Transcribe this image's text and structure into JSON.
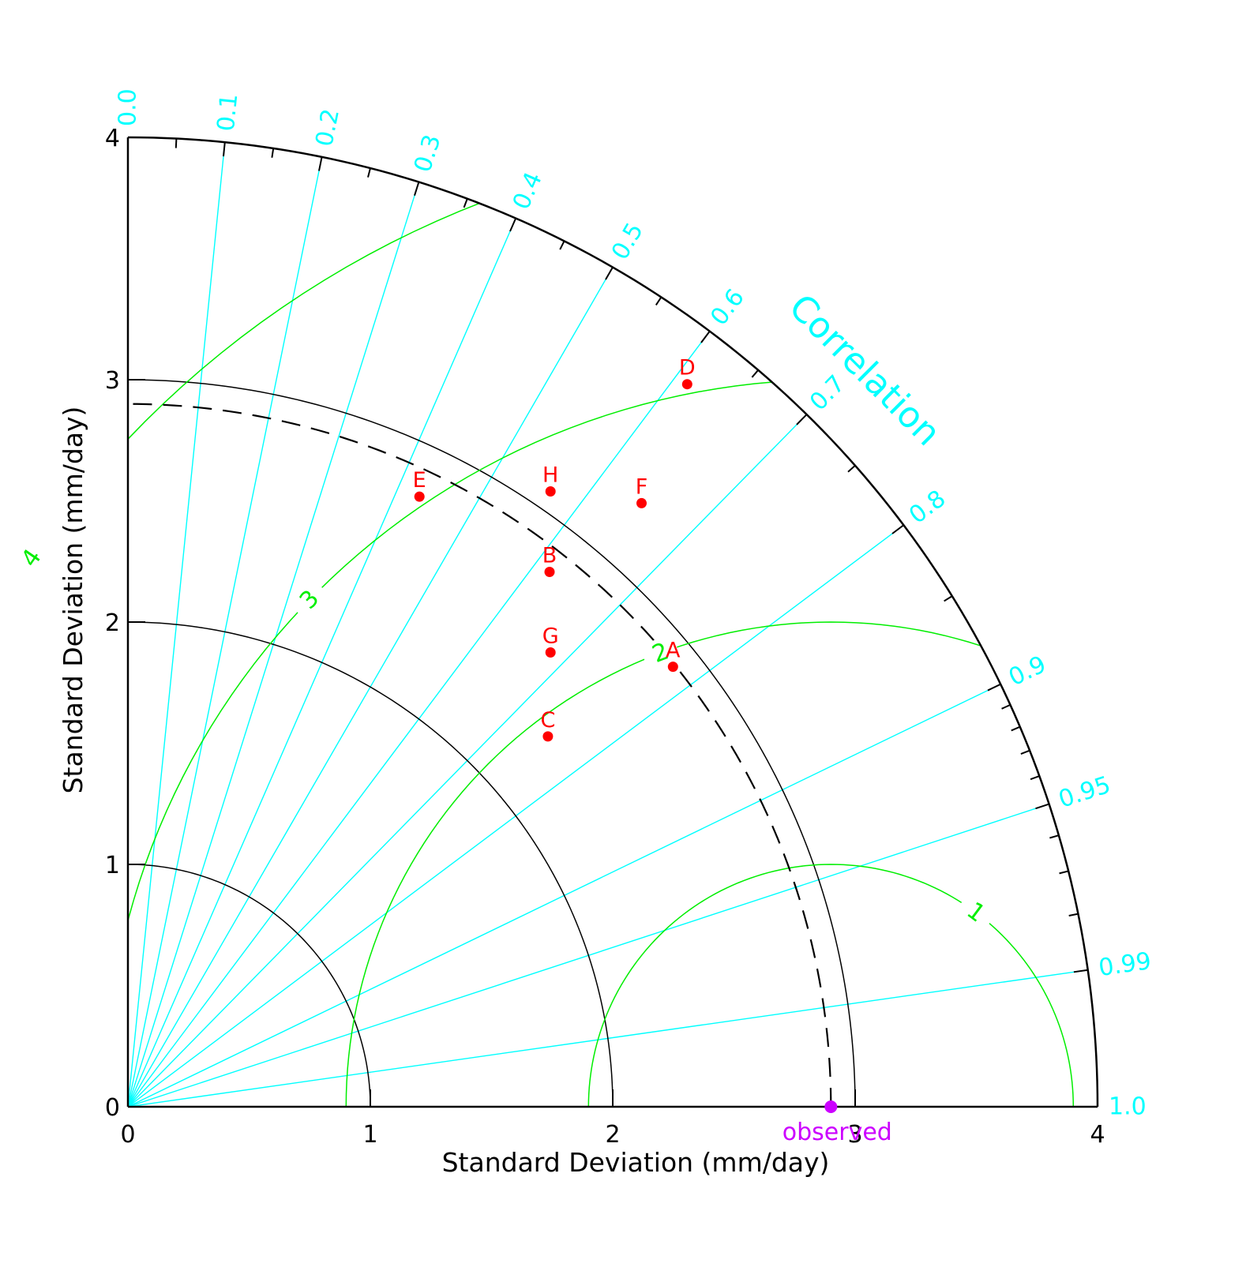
{
  "chart_data": {
    "type": "scatter",
    "subtype": "taylor-diagram",
    "title": "",
    "xlabel": "Standard Deviation (mm/day)",
    "ylabel": "Standard Deviation (mm/day)",
    "xlim": [
      0,
      4
    ],
    "ylim": [
      0,
      4
    ],
    "std_ticks": [
      "0",
      "1",
      "2",
      "3",
      "4"
    ],
    "std_tick_values": [
      0,
      1,
      2,
      3,
      4
    ],
    "correlation_title": "Correlation",
    "correlation_ticks": [
      {
        "value": 0.0,
        "label": "0.0"
      },
      {
        "value": 0.1,
        "label": "0.1"
      },
      {
        "value": 0.2,
        "label": "0.2"
      },
      {
        "value": 0.3,
        "label": "0.3"
      },
      {
        "value": 0.4,
        "label": "0.4"
      },
      {
        "value": 0.5,
        "label": "0.5"
      },
      {
        "value": 0.6,
        "label": "0.6"
      },
      {
        "value": 0.7,
        "label": "0.7"
      },
      {
        "value": 0.8,
        "label": "0.8"
      },
      {
        "value": 0.9,
        "label": "0.9"
      },
      {
        "value": 0.95,
        "label": "0.95"
      },
      {
        "value": 0.99,
        "label": "0.99"
      },
      {
        "value": 1.0,
        "label": "1.0"
      }
    ],
    "correlation_minor_ticks": [
      0.05,
      0.15,
      0.25,
      0.35,
      0.45,
      0.55,
      0.65,
      0.75,
      0.85,
      0.91,
      0.92,
      0.93,
      0.94,
      0.96,
      0.97,
      0.98
    ],
    "correlation_lines": [
      0.1,
      0.2,
      0.3,
      0.4,
      0.5,
      0.6,
      0.7,
      0.8,
      0.9,
      0.95,
      0.99
    ],
    "std_arcs": [
      1,
      2,
      3
    ],
    "rms_contours": [
      {
        "value": 1,
        "label": "1"
      },
      {
        "value": 2,
        "label": "2"
      },
      {
        "value": 3,
        "label": "3"
      },
      {
        "value": 4,
        "label": "4"
      }
    ],
    "reference": {
      "label": "observed",
      "std": 2.9
    },
    "points": [
      {
        "label": "A",
        "std": 2.89,
        "corr": 0.778
      },
      {
        "label": "B",
        "std": 2.81,
        "corr": 0.619
      },
      {
        "label": "C",
        "std": 2.31,
        "corr": 0.75
      },
      {
        "label": "D",
        "std": 3.77,
        "corr": 0.612
      },
      {
        "label": "E",
        "std": 2.79,
        "corr": 0.431
      },
      {
        "label": "F",
        "std": 3.27,
        "corr": 0.648
      },
      {
        "label": "G",
        "std": 2.56,
        "corr": 0.681
      },
      {
        "label": "H",
        "std": 3.08,
        "corr": 0.566
      }
    ],
    "colors": {
      "frame": "#000000",
      "correlation": "#00ffff",
      "rms": "#00ee00",
      "points": "#ff0000",
      "reference": "#cc00ff"
    }
  }
}
